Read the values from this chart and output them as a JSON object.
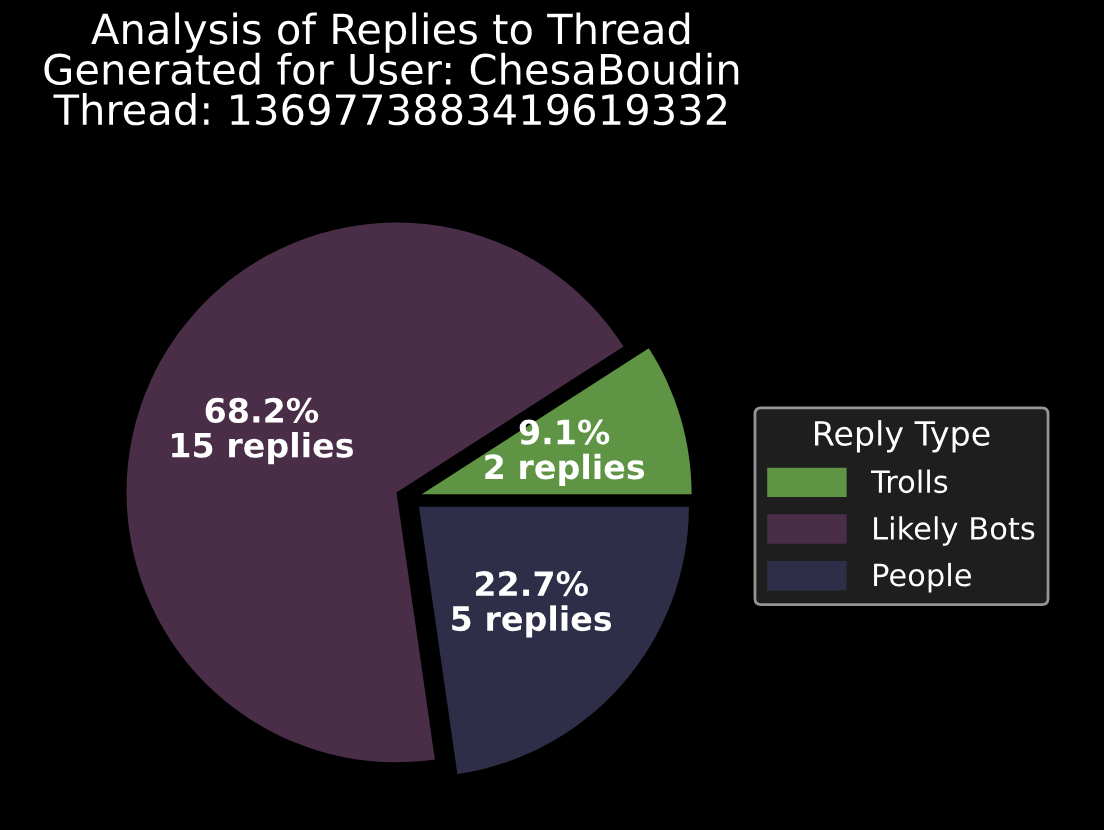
{
  "chart_data": {
    "type": "pie",
    "title": "Analysis of Replies to Thread\nGenerated for User: ChesaBoudin\nThread: 1369773883419619332",
    "categories": [
      "Trolls",
      "Likely Bots",
      "People"
    ],
    "values": [
      2,
      15,
      5
    ],
    "value_labels": [
      "9.1%\n2 replies",
      "68.2%\n15 replies",
      "22.7%\n5 replies"
    ],
    "colors": [
      "#5e9444",
      "#4a2e48",
      "#2e2e48"
    ],
    "legend_title": "Reply Type",
    "legend": "right"
  }
}
